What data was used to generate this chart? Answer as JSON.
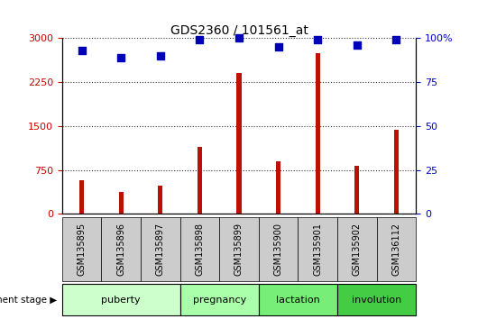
{
  "title": "GDS2360 / 101561_at",
  "samples": [
    "GSM135895",
    "GSM135896",
    "GSM135897",
    "GSM135898",
    "GSM135899",
    "GSM135900",
    "GSM135901",
    "GSM135902",
    "GSM136112"
  ],
  "counts": [
    580,
    370,
    480,
    1150,
    2400,
    900,
    2750,
    820,
    1430
  ],
  "percentiles": [
    93,
    89,
    90,
    99,
    100,
    95,
    99,
    96,
    99
  ],
  "stages": [
    {
      "label": "puberty",
      "span": [
        0,
        2
      ],
      "color": "#ccffcc"
    },
    {
      "label": "pregnancy",
      "span": [
        3,
        4
      ],
      "color": "#aaffaa"
    },
    {
      "label": "lactation",
      "span": [
        5,
        6
      ],
      "color": "#77ee77"
    },
    {
      "label": "involution",
      "span": [
        7,
        8
      ],
      "color": "#44cc44"
    }
  ],
  "bar_color": "#bb1100",
  "dot_color": "#0000bb",
  "left_ylim": [
    0,
    3000
  ],
  "right_ylim": [
    0,
    100
  ],
  "left_yticks": [
    0,
    750,
    1500,
    2250,
    3000
  ],
  "right_yticks": [
    0,
    25,
    50,
    75,
    100
  ],
  "right_yticklabels": [
    "0",
    "25",
    "50",
    "75",
    "100%"
  ],
  "bar_width": 0.12,
  "dot_size": 40,
  "xticklabel_bg": "#cccccc",
  "plot_bg": "#ffffff",
  "tick_color_left": "#cc0000",
  "tick_color_right": "#0000cc",
  "gridline_style": "dotted",
  "gridline_color": "#333333",
  "figsize": [
    5.3,
    3.54
  ],
  "dpi": 100
}
